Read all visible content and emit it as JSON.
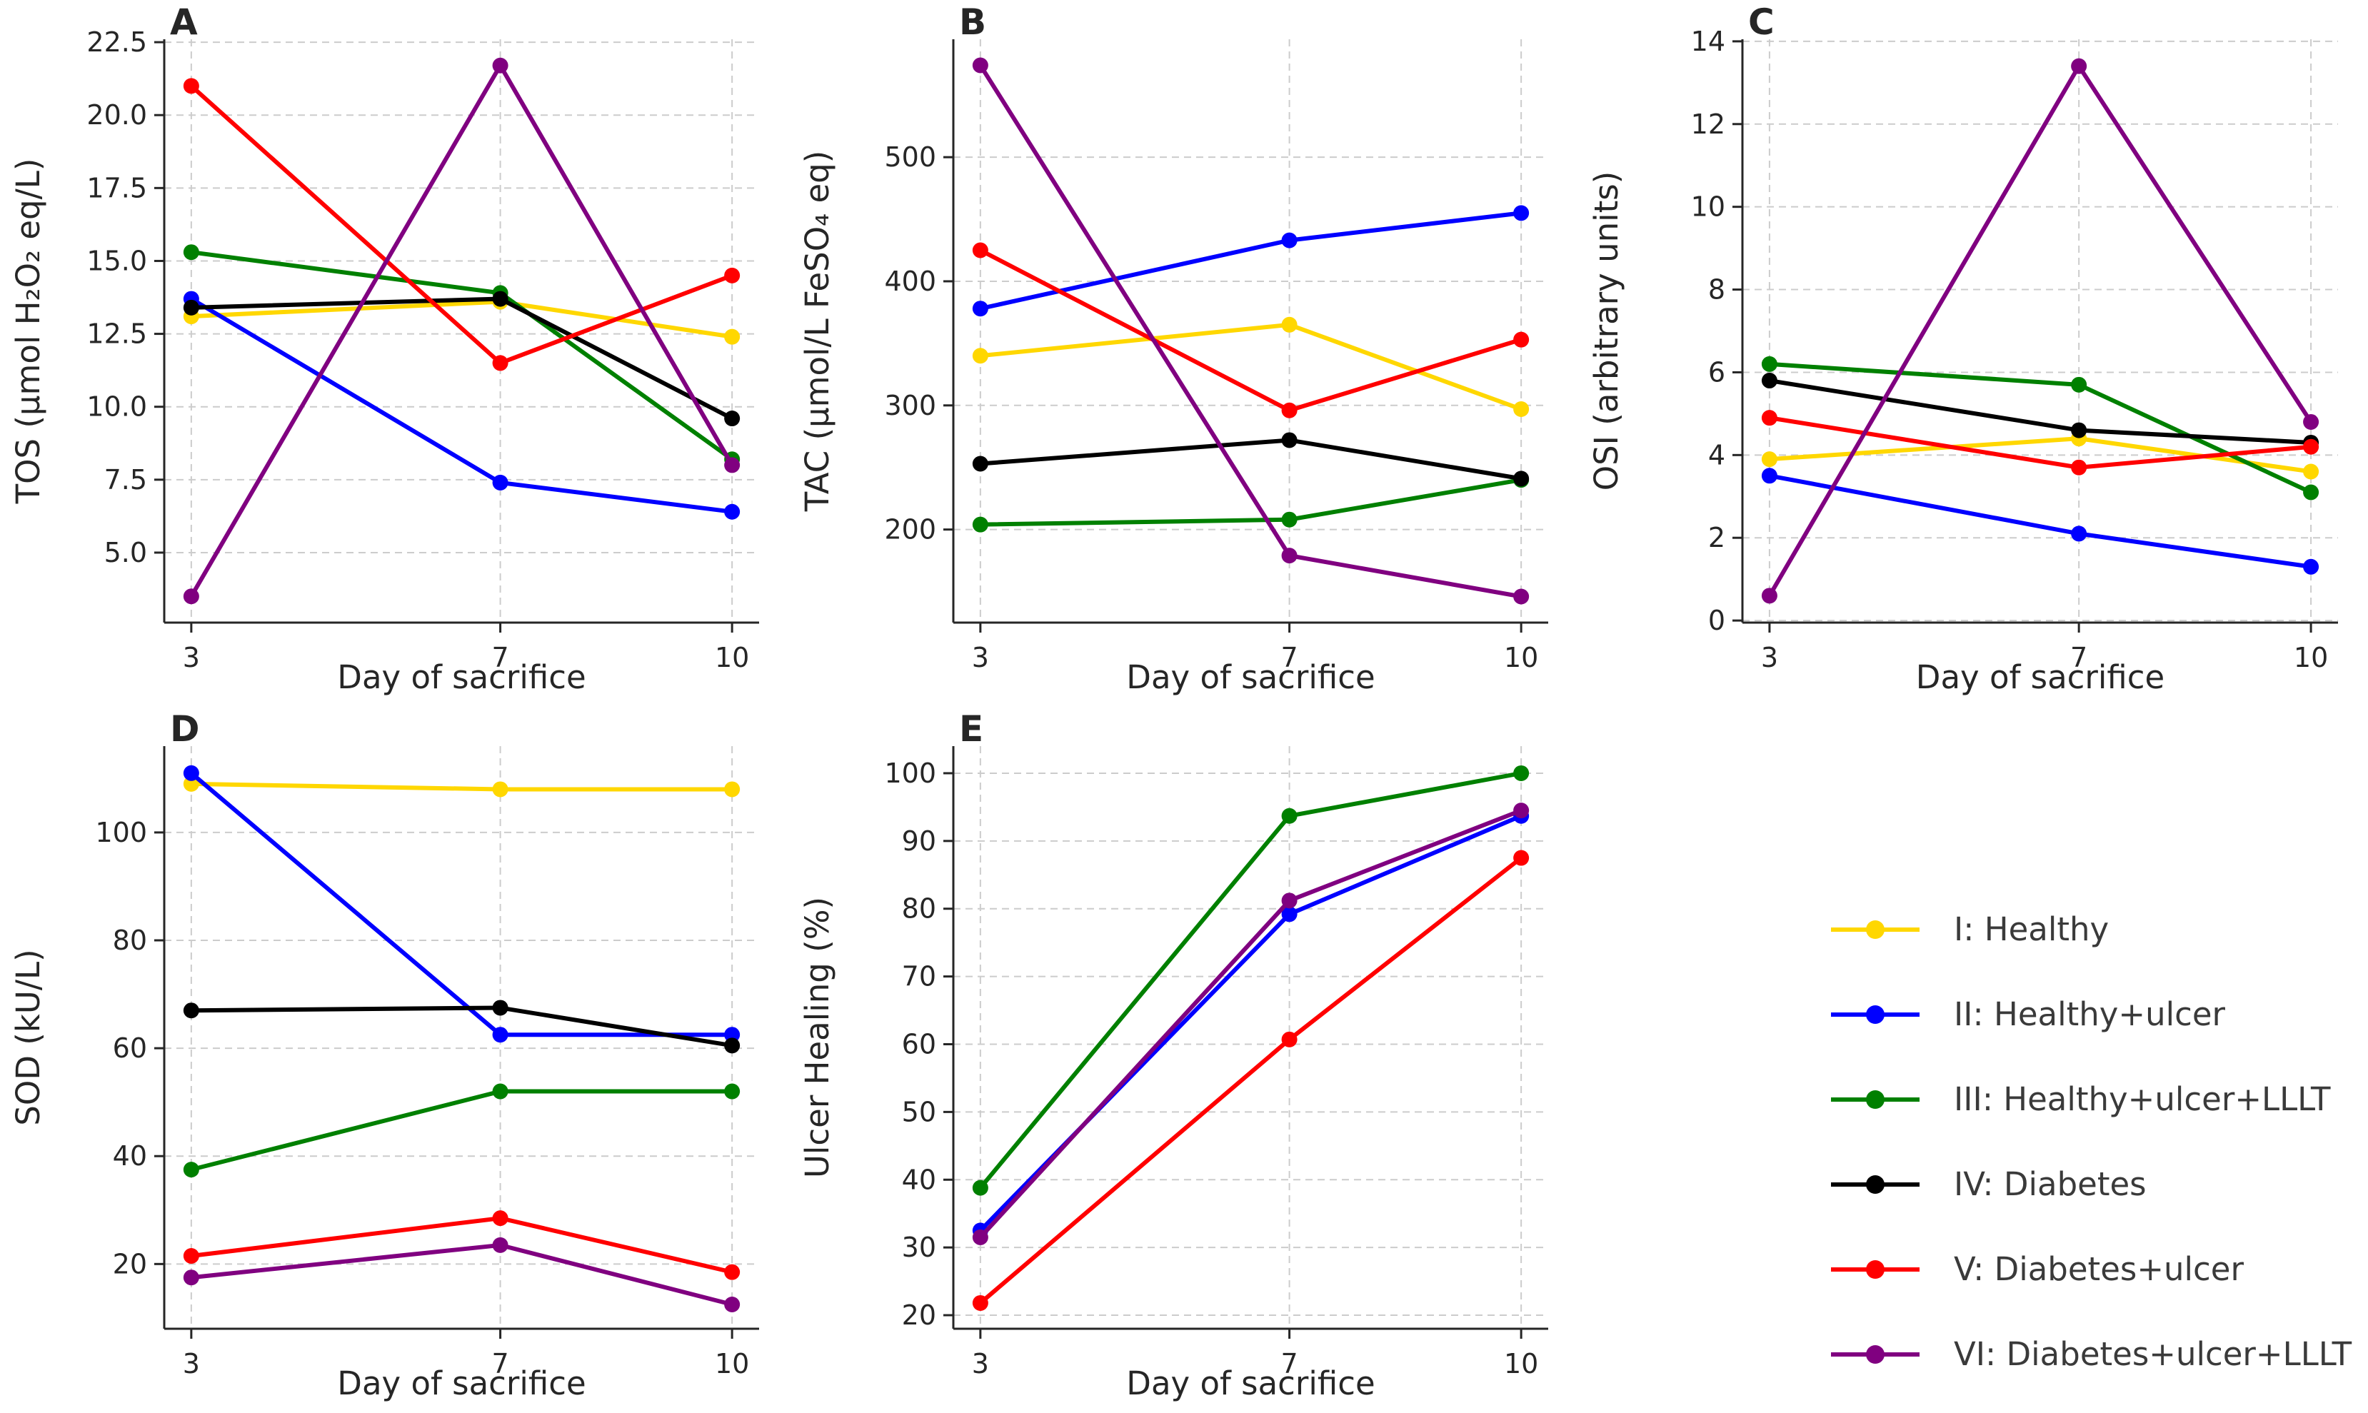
{
  "figure": {
    "background": "#ffffff",
    "text_color": "#262626",
    "grid_color": "#cccccc",
    "spine_color": "#262626",
    "xlabel": "Day of sacrifice"
  },
  "groups": [
    {
      "id": "I",
      "label": "I: Healthy",
      "color": "#FFD700"
    },
    {
      "id": "II",
      "label": "II: Healthy+ulcer",
      "color": "#0000FF"
    },
    {
      "id": "III",
      "label": "III: Healthy+ulcer+LLLT",
      "color": "#008000"
    },
    {
      "id": "IV",
      "label": "IV: Diabetes",
      "color": "#000000"
    },
    {
      "id": "V",
      "label": "V: Diabetes+ulcer",
      "color": "#FF0000"
    },
    {
      "id": "VI",
      "label": "VI: Diabetes+ulcer+LLLT",
      "color": "#800080"
    }
  ],
  "chart_data": [
    {
      "panel_label": "A",
      "type": "line",
      "xlabel": "Day of sacrifice",
      "ylabel": "TOS (μmol H₂O₂ eq/L)",
      "x": [
        3,
        7,
        10
      ],
      "xticklabels": [
        "3",
        "7",
        "10"
      ],
      "xlim": [
        2.65,
        10.35
      ],
      "ylim": [
        2.6,
        22.6
      ],
      "yticks": [
        5.0,
        7.5,
        10.0,
        12.5,
        15.0,
        17.5,
        20.0,
        22.5
      ],
      "yticklabels": [
        "5.0",
        "7.5",
        "10.0",
        "12.5",
        "15.0",
        "17.5",
        "20.0",
        "22.5"
      ],
      "grid": true,
      "legend_position": "none",
      "series": [
        {
          "name": "I: Healthy",
          "color": "#FFD700",
          "values": [
            13.1,
            13.6,
            12.4
          ]
        },
        {
          "name": "II: Healthy+ulcer",
          "color": "#0000FF",
          "values": [
            13.7,
            7.4,
            6.4
          ]
        },
        {
          "name": "III: Healthy+ulcer+LLLT",
          "color": "#008000",
          "values": [
            15.3,
            13.9,
            8.2
          ]
        },
        {
          "name": "IV: Diabetes",
          "color": "#000000",
          "values": [
            13.4,
            13.7,
            9.6
          ]
        },
        {
          "name": "V: Diabetes+ulcer",
          "color": "#FF0000",
          "values": [
            21.0,
            11.5,
            14.5
          ]
        },
        {
          "name": "VI: Diabetes+ulcer+LLLT",
          "color": "#800080",
          "values": [
            3.5,
            21.7,
            8.0
          ]
        }
      ]
    },
    {
      "panel_label": "B",
      "type": "line",
      "xlabel": "Day of sacrifice",
      "ylabel": "TAC (μmol/L FeSO₄ eq)",
      "x": [
        3,
        7,
        10
      ],
      "xticklabels": [
        "3",
        "7",
        "10"
      ],
      "xlim": [
        2.65,
        10.35
      ],
      "ylim": [
        125,
        595
      ],
      "yticks": [
        200,
        300,
        400,
        500
      ],
      "yticklabels": [
        "200",
        "300",
        "400",
        "500"
      ],
      "grid": true,
      "legend_position": "none",
      "series": [
        {
          "name": "I: Healthy",
          "color": "#FFD700",
          "values": [
            340,
            365,
            297
          ]
        },
        {
          "name": "II: Healthy+ulcer",
          "color": "#0000FF",
          "values": [
            378,
            433,
            455
          ]
        },
        {
          "name": "III: Healthy+ulcer+LLLT",
          "color": "#008000",
          "values": [
            204,
            208,
            240
          ]
        },
        {
          "name": "IV: Diabetes",
          "color": "#000000",
          "values": [
            253,
            272,
            241
          ]
        },
        {
          "name": "V: Diabetes+ulcer",
          "color": "#FF0000",
          "values": [
            425,
            296,
            353
          ]
        },
        {
          "name": "VI: Diabetes+ulcer+LLLT",
          "color": "#800080",
          "values": [
            574,
            179,
            146
          ]
        }
      ]
    },
    {
      "panel_label": "C",
      "type": "line",
      "xlabel": "Day of sacrifice",
      "ylabel": "OSI (arbitrary units)",
      "x": [
        3,
        7,
        10
      ],
      "xticklabels": [
        "3",
        "7",
        "10"
      ],
      "xlim": [
        2.65,
        10.35
      ],
      "ylim": [
        -0.05,
        14.05
      ],
      "yticks": [
        0,
        2,
        4,
        6,
        8,
        10,
        12,
        14
      ],
      "yticklabels": [
        "0",
        "2",
        "4",
        "6",
        "8",
        "10",
        "12",
        "14"
      ],
      "grid": true,
      "legend_position": "none",
      "series": [
        {
          "name": "I: Healthy",
          "color": "#FFD700",
          "values": [
            3.9,
            4.4,
            3.6
          ]
        },
        {
          "name": "II: Healthy+ulcer",
          "color": "#0000FF",
          "values": [
            3.5,
            2.1,
            1.3
          ]
        },
        {
          "name": "III: Healthy+ulcer+LLLT",
          "color": "#008000",
          "values": [
            6.2,
            5.7,
            3.1
          ]
        },
        {
          "name": "IV: Diabetes",
          "color": "#000000",
          "values": [
            5.8,
            4.6,
            4.3
          ]
        },
        {
          "name": "V: Diabetes+ulcer",
          "color": "#FF0000",
          "values": [
            4.9,
            3.7,
            4.2
          ]
        },
        {
          "name": "VI: Diabetes+ulcer+LLLT",
          "color": "#800080",
          "values": [
            0.6,
            13.4,
            4.8
          ]
        }
      ]
    },
    {
      "panel_label": "D",
      "type": "line",
      "xlabel": "Day of sacrifice",
      "ylabel": "SOD (kU/L)",
      "x": [
        3,
        7,
        10
      ],
      "xticklabels": [
        "3",
        "7",
        "10"
      ],
      "xlim": [
        2.65,
        10.35
      ],
      "ylim": [
        8,
        116
      ],
      "yticks": [
        20,
        40,
        60,
        80,
        100
      ],
      "yticklabels": [
        "20",
        "40",
        "60",
        "80",
        "100"
      ],
      "grid": true,
      "legend_position": "none",
      "series": [
        {
          "name": "I: Healthy",
          "color": "#FFD700",
          "values": [
            109,
            108,
            108
          ]
        },
        {
          "name": "II: Healthy+ulcer",
          "color": "#0000FF",
          "values": [
            111,
            62.5,
            62.5
          ]
        },
        {
          "name": "III: Healthy+ulcer+LLLT",
          "color": "#008000",
          "values": [
            37.5,
            52,
            52
          ]
        },
        {
          "name": "IV: Diabetes",
          "color": "#000000",
          "values": [
            67,
            67.5,
            60.5
          ]
        },
        {
          "name": "V: Diabetes+ulcer",
          "color": "#FF0000",
          "values": [
            21.5,
            28.5,
            18.5
          ]
        },
        {
          "name": "VI: Diabetes+ulcer+LLLT",
          "color": "#800080",
          "values": [
            17.5,
            23.5,
            12.5
          ]
        }
      ]
    },
    {
      "panel_label": "E",
      "type": "line",
      "xlabel": "Day of sacrifice",
      "ylabel": "Ulcer Healing (%)",
      "x": [
        3,
        7,
        10
      ],
      "xticklabels": [
        "3",
        "7",
        "10"
      ],
      "xlim": [
        2.65,
        10.35
      ],
      "ylim": [
        18,
        104
      ],
      "yticks": [
        20,
        30,
        40,
        50,
        60,
        70,
        80,
        90,
        100
      ],
      "yticklabels": [
        "20",
        "30",
        "40",
        "50",
        "60",
        "70",
        "80",
        "90",
        "100"
      ],
      "grid": true,
      "legend_position": "none",
      "series": [
        {
          "name": "II: Healthy+ulcer",
          "color": "#0000FF",
          "values": [
            32.5,
            79.2,
            93.7
          ]
        },
        {
          "name": "III: Healthy+ulcer+LLLT",
          "color": "#008000",
          "values": [
            38.8,
            93.7,
            100
          ]
        },
        {
          "name": "V: Diabetes+ulcer",
          "color": "#FF0000",
          "values": [
            21.8,
            60.7,
            87.5
          ]
        },
        {
          "name": "VI: Diabetes+ulcer+LLLT",
          "color": "#800080",
          "values": [
            31.5,
            81.2,
            94.5
          ]
        }
      ]
    }
  ]
}
